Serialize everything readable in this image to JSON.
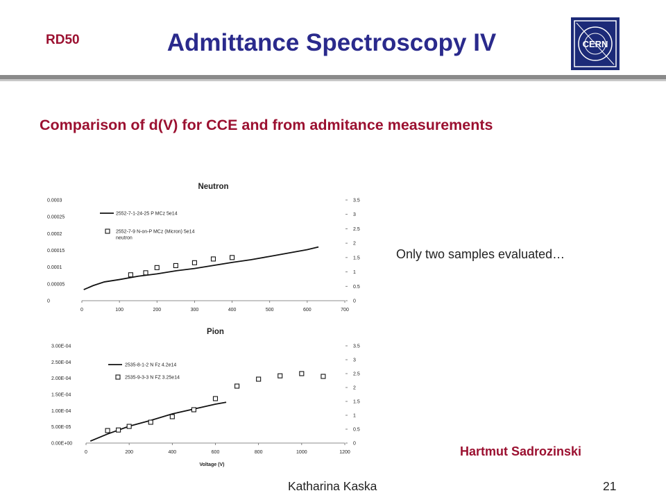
{
  "header": {
    "tag": "RD50",
    "title": "Admittance Spectroscopy IV",
    "logo_text": "CERN"
  },
  "subtitle": "Comparison of d(V) for CCE and from admitance measurements",
  "note": "Only two samples evaluated…",
  "author": "Hartmut Sadrozinski",
  "footer": {
    "presenter": "Katharina Kaska",
    "page": "21"
  },
  "colors": {
    "title": "#2a2a8c",
    "accent": "#9b1030",
    "logo_bg": "#1c2a78"
  },
  "chart_data": [
    {
      "type": "scatter",
      "title": "Neutron",
      "xlabel": "",
      "ylabel": "",
      "xlim": [
        0,
        700
      ],
      "ylim": [
        0,
        0.0003
      ],
      "y2lim": [
        0,
        3.5
      ],
      "x_ticks": [
        "0",
        "100",
        "200",
        "300",
        "400",
        "500",
        "600",
        "700"
      ],
      "y_ticks": [
        "0",
        "0.00005",
        "0.0001",
        "0.00015",
        "0.0002",
        "0.00025",
        "0.0003"
      ],
      "y2_ticks": [
        "0",
        "0.5",
        "1",
        "1.5",
        "2",
        "2.5",
        "3",
        "3.5"
      ],
      "legend_position": "top-left",
      "series": [
        {
          "name": "2552-7-1-24-25 P MCz 5e14",
          "kind": "line",
          "axis": "left",
          "x": [
            5,
            30,
            60,
            100,
            150,
            200,
            250,
            300,
            350,
            400,
            450,
            500,
            550,
            600,
            630
          ],
          "y": [
            3.3e-05,
            4.5e-05,
            5.6e-05,
            6.3e-05,
            7.3e-05,
            8e-05,
            8.9e-05,
            9.6e-05,
            0.000105,
            0.000114,
            0.000122,
            0.000132,
            0.000142,
            0.000152,
            0.00016
          ]
        },
        {
          "name": "2552-7-9 N-on-P MCz (Micron) 5e14 neutron",
          "kind": "markers",
          "axis": "right",
          "x": [
            130,
            170,
            200,
            250,
            300,
            350,
            400
          ],
          "y": [
            0.9,
            0.97,
            1.15,
            1.22,
            1.32,
            1.45,
            1.5
          ]
        }
      ]
    },
    {
      "type": "scatter",
      "title": "Pion",
      "xlabel": "Voltage (V)",
      "ylabel": "",
      "xlim": [
        0,
        1200
      ],
      "ylim": [
        0,
        0.0003
      ],
      "y2lim": [
        0,
        3.5
      ],
      "x_ticks": [
        "0",
        "200",
        "400",
        "600",
        "800",
        "1000",
        "1200"
      ],
      "y_ticks": [
        "0.00E+00",
        "5.00E-05",
        "1.00E-04",
        "1.50E-04",
        "2.00E-04",
        "2.50E-04",
        "3.00E-04"
      ],
      "y2_ticks": [
        "0",
        "0.5",
        "1",
        "1.5",
        "2",
        "2.5",
        "3",
        "3.5"
      ],
      "legend_position": "top-left",
      "series": [
        {
          "name": "2535-8-1-2 N Fz 4.2e14",
          "kind": "line",
          "axis": "left",
          "x": [
            20,
            100,
            200,
            300,
            400,
            500,
            600,
            650
          ],
          "y": [
            6e-06,
            2.8e-05,
            5.2e-05,
            7e-05,
            9e-05,
            0.000105,
            0.00012,
            0.000126
          ]
        },
        {
          "name": "2535-9-3-3 N FZ 3.25e14",
          "kind": "markers",
          "axis": "right",
          "x": [
            100,
            150,
            200,
            300,
            400,
            500,
            600,
            700,
            800,
            900,
            1000,
            1100
          ],
          "y": [
            0.45,
            0.47,
            0.6,
            0.75,
            0.95,
            1.2,
            1.6,
            2.05,
            2.3,
            2.42,
            2.5,
            2.4
          ]
        }
      ]
    }
  ]
}
